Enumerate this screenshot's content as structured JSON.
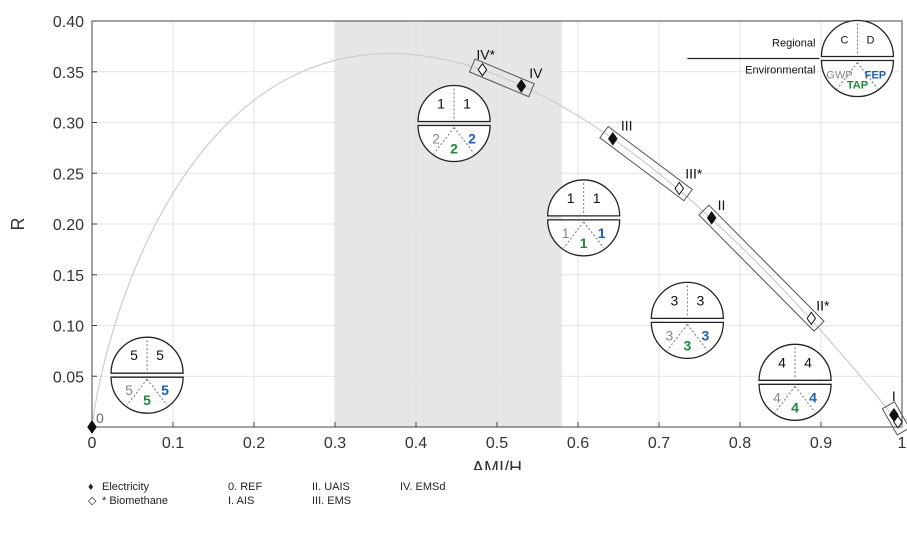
{
  "chart_data": {
    "type": "scatter",
    "xlabel": "AMI/H",
    "ylabel": "R",
    "xlim": [
      0,
      1
    ],
    "ylim": [
      0,
      0.4
    ],
    "x_ticks": [
      "0",
      "0.1",
      "0.2",
      "0.3",
      "0.4",
      "0.5",
      "0.6",
      "0.7",
      "0.8",
      "0.9",
      "1"
    ],
    "y_ticks": [
      "0.05",
      "0.10",
      "0.15",
      "0.20",
      "0.25",
      "0.30",
      "0.35",
      "0.40"
    ],
    "grid": true,
    "shaded_band": [
      0.3,
      0.58
    ],
    "curve": "R = -(AMI/H) ln(AMI/H)",
    "series": [
      {
        "name": "Electricity",
        "marker": "filled-diamond",
        "points": [
          {
            "label": "0",
            "x": 0.0,
            "y": 0.0
          },
          {
            "label": "I",
            "x": 0.99,
            "y": 0.012
          },
          {
            "label": "II",
            "x": 0.765,
            "y": 0.206
          },
          {
            "label": "III",
            "x": 0.643,
            "y": 0.284
          },
          {
            "label": "IV",
            "x": 0.53,
            "y": 0.336
          }
        ]
      },
      {
        "name": "* Biomethane",
        "marker": "open-diamond",
        "points": [
          {
            "label": "I",
            "x": 0.995,
            "y": 0.005
          },
          {
            "label": "II*",
            "x": 0.888,
            "y": 0.107
          },
          {
            "label": "III*",
            "x": 0.725,
            "y": 0.235
          },
          {
            "label": "IV*",
            "x": 0.482,
            "y": 0.352
          }
        ]
      }
    ],
    "pair_boxes": [
      {
        "from": [
          0.482,
          0.352
        ],
        "to": [
          0.53,
          0.336
        ]
      },
      {
        "from": [
          0.643,
          0.284
        ],
        "to": [
          0.725,
          0.235
        ]
      },
      {
        "from": [
          0.765,
          0.206
        ],
        "to": [
          0.888,
          0.107
        ]
      },
      {
        "from": [
          0.99,
          0.012
        ],
        "to": [
          0.995,
          0.005
        ]
      }
    ],
    "scenario_labels": [
      {
        "text": "0",
        "x": 0.0,
        "y": 0.0
      },
      {
        "text": "I",
        "x": 0.99,
        "y": 0.012
      },
      {
        "text": "II",
        "x": 0.765,
        "y": 0.206
      },
      {
        "text": "II*",
        "x": 0.888,
        "y": 0.107
      },
      {
        "text": "III",
        "x": 0.643,
        "y": 0.284
      },
      {
        "text": "III*",
        "x": 0.725,
        "y": 0.235
      },
      {
        "text": "IV",
        "x": 0.53,
        "y": 0.336
      },
      {
        "text": "IV*",
        "x": 0.482,
        "y": 0.352
      }
    ],
    "rank_glyphs": [
      {
        "x": 0.068,
        "y": 0.053,
        "C": "5",
        "D": "5",
        "GWP": "5",
        "FEP": "5",
        "TAP": "5"
      },
      {
        "x": 0.447,
        "y": 0.301,
        "C": "1",
        "D": "1",
        "GWP": "2",
        "FEP": "2",
        "TAP": "2"
      },
      {
        "x": 0.607,
        "y": 0.208,
        "C": "1",
        "D": "1",
        "GWP": "1",
        "FEP": "1",
        "TAP": "1"
      },
      {
        "x": 0.735,
        "y": 0.107,
        "C": "3",
        "D": "3",
        "GWP": "3",
        "FEP": "3",
        "TAP": "3"
      },
      {
        "x": 0.868,
        "y": 0.046,
        "C": "4",
        "D": "4",
        "GWP": "4",
        "FEP": "4",
        "TAP": "4"
      }
    ],
    "glyph_key": {
      "x": 0.945,
      "y": 0.365,
      "top_label": "Regional",
      "bottom_label": "Environmental",
      "C": "C",
      "D": "D",
      "GWP": "GWP",
      "FEP": "FEP",
      "TAP": "TAP"
    },
    "colors": {
      "GWP": "#888888",
      "FEP": "#1f5fb0",
      "TAP": "#1b8a3a",
      "band": "#e6e6e6",
      "curve": "#cccccc",
      "grid": "#e3e3e3"
    }
  },
  "legend": {
    "markers": [
      {
        "symbol": "♦",
        "label": "Electricity"
      },
      {
        "symbol": "◇",
        "label": "* Biomethane"
      }
    ],
    "scenarios": [
      [
        "0. REF",
        "I. AIS"
      ],
      [
        "II. UAIS",
        "III. EMS"
      ],
      [
        "IV. EMSd"
      ]
    ]
  }
}
